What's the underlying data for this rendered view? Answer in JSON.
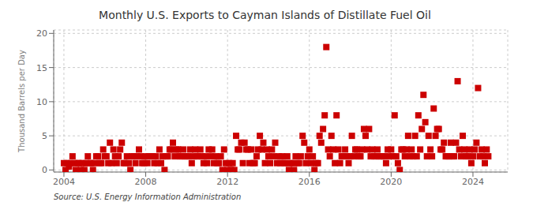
{
  "chart_data": {
    "type": "scatter",
    "title": "Monthly U.S. Exports to Cayman Islands of Distillate Fuel Oil",
    "ylabel": "Thousand Barrels per Day",
    "annotations": [
      "Source: U.S. Energy Information Administration"
    ],
    "color": "#CC0000",
    "marker": "square",
    "grid": true,
    "xlim": [
      2003.5,
      2025.7
    ],
    "ylim": [
      -0.3,
      20.5
    ],
    "xticks": [
      2004,
      2008,
      2012,
      2016,
      2020,
      2024
    ],
    "yticks": [
      0,
      5,
      10,
      15,
      20
    ],
    "x": [
      2004.0,
      2004.08,
      2004.17,
      2004.25,
      2004.33,
      2004.42,
      2004.5,
      2004.58,
      2004.67,
      2004.75,
      2004.83,
      2004.92,
      2005.0,
      2005.08,
      2005.17,
      2005.25,
      2005.33,
      2005.42,
      2005.5,
      2005.58,
      2005.67,
      2005.75,
      2005.83,
      2005.92,
      2006.0,
      2006.08,
      2006.17,
      2006.25,
      2006.33,
      2006.42,
      2006.5,
      2006.58,
      2006.67,
      2006.75,
      2006.83,
      2006.92,
      2007.0,
      2007.08,
      2007.17,
      2007.25,
      2007.33,
      2007.42,
      2007.5,
      2007.58,
      2007.67,
      2007.75,
      2007.83,
      2007.92,
      2008.0,
      2008.08,
      2008.17,
      2008.25,
      2008.33,
      2008.42,
      2008.5,
      2008.58,
      2008.67,
      2008.75,
      2008.83,
      2008.92,
      2009.0,
      2009.08,
      2009.17,
      2009.25,
      2009.33,
      2009.42,
      2009.5,
      2009.58,
      2009.67,
      2009.75,
      2009.83,
      2009.92,
      2010.0,
      2010.08,
      2010.17,
      2010.25,
      2010.33,
      2010.42,
      2010.5,
      2010.58,
      2010.67,
      2010.75,
      2010.83,
      2010.92,
      2011.0,
      2011.08,
      2011.17,
      2011.25,
      2011.33,
      2011.42,
      2011.5,
      2011.58,
      2011.67,
      2011.75,
      2011.83,
      2011.92,
      2012.0,
      2012.08,
      2012.17,
      2012.25,
      2012.33,
      2012.42,
      2012.5,
      2012.58,
      2012.67,
      2012.75,
      2012.83,
      2012.92,
      2013.0,
      2013.08,
      2013.17,
      2013.25,
      2013.33,
      2013.42,
      2013.5,
      2013.58,
      2013.67,
      2013.75,
      2013.83,
      2013.92,
      2014.0,
      2014.08,
      2014.17,
      2014.25,
      2014.33,
      2014.42,
      2014.5,
      2014.58,
      2014.67,
      2014.75,
      2014.83,
      2014.92,
      2015.0,
      2015.08,
      2015.17,
      2015.25,
      2015.33,
      2015.42,
      2015.5,
      2015.58,
      2015.67,
      2015.75,
      2015.83,
      2015.92,
      2016.0,
      2016.08,
      2016.17,
      2016.25,
      2016.33,
      2016.42,
      2016.5,
      2016.58,
      2016.67,
      2016.75,
      2016.83,
      2016.92,
      2017.0,
      2017.08,
      2017.17,
      2017.25,
      2017.33,
      2017.42,
      2017.5,
      2017.58,
      2017.67,
      2017.75,
      2017.83,
      2017.92,
      2018.0,
      2018.08,
      2018.17,
      2018.25,
      2018.33,
      2018.42,
      2018.5,
      2018.58,
      2018.67,
      2018.75,
      2018.83,
      2018.92,
      2019.0,
      2019.08,
      2019.17,
      2019.25,
      2019.33,
      2019.42,
      2019.5,
      2019.58,
      2019.67,
      2019.75,
      2019.83,
      2019.92,
      2020.0,
      2020.08,
      2020.17,
      2020.25,
      2020.33,
      2020.42,
      2020.5,
      2020.58,
      2020.67,
      2020.75,
      2020.83,
      2020.92,
      2021.0,
      2021.08,
      2021.17,
      2021.25,
      2021.33,
      2021.42,
      2021.5,
      2021.58,
      2021.67,
      2021.75,
      2021.83,
      2021.92,
      2022.0,
      2022.08,
      2022.17,
      2022.25,
      2022.33,
      2022.42,
      2022.5,
      2022.58,
      2022.67,
      2022.75,
      2022.83,
      2022.92,
      2023.0,
      2023.08,
      2023.17,
      2023.25,
      2023.33,
      2023.42,
      2023.5,
      2023.58,
      2023.67,
      2023.75,
      2023.83,
      2023.92,
      2024.0,
      2024.08,
      2024.17,
      2024.25,
      2024.33,
      2024.42,
      2024.5,
      2024.58,
      2024.67,
      2024.75
    ],
    "values": [
      1,
      0,
      1,
      0.5,
      1,
      2,
      1,
      0,
      1,
      1,
      0,
      1,
      0,
      1,
      2,
      1,
      1,
      0,
      1,
      2,
      2,
      1,
      1,
      3,
      2,
      2,
      1,
      4,
      1,
      3,
      2,
      1,
      2,
      3,
      4,
      1,
      1,
      2,
      1,
      0,
      2,
      2,
      1,
      2,
      3,
      2,
      1,
      1,
      2,
      1,
      2,
      2,
      2,
      1,
      2,
      1,
      3,
      1,
      2,
      0,
      2,
      2,
      3,
      3,
      4,
      2,
      3,
      3,
      2,
      2,
      3,
      2,
      2,
      2,
      3,
      1,
      2,
      3,
      2,
      2,
      3,
      2,
      1,
      2,
      1,
      3,
      2,
      3,
      1,
      2,
      1,
      1,
      2,
      0,
      3,
      1,
      0,
      1,
      0,
      1,
      0,
      5,
      3,
      3,
      4,
      1,
      4,
      3,
      3,
      1,
      3,
      1,
      1,
      2,
      3,
      5,
      3,
      4,
      1,
      3,
      2,
      1,
      3,
      2,
      4,
      1,
      2,
      1,
      2,
      1,
      1,
      2,
      0,
      1,
      1,
      0,
      2,
      1,
      1,
      2,
      5,
      4,
      1,
      2,
      3,
      1,
      2,
      0,
      1,
      1,
      5,
      4,
      6,
      8,
      18,
      3,
      2,
      5,
      3,
      1,
      8,
      3,
      1,
      2,
      2,
      3,
      2,
      1,
      2,
      5,
      2,
      3,
      3,
      2,
      2,
      3,
      6,
      5,
      3,
      6,
      2,
      3,
      2,
      2,
      3,
      2,
      2,
      2,
      2,
      1,
      3,
      2,
      3,
      2,
      8,
      2,
      1,
      0,
      3,
      3,
      2,
      3,
      5,
      2,
      3,
      2,
      5,
      2,
      8,
      3,
      6,
      11,
      7,
      2,
      5,
      3,
      2,
      9,
      5,
      6,
      6,
      3,
      3,
      4,
      2,
      2,
      2,
      4,
      2,
      2,
      4,
      13,
      3,
      2,
      5,
      3,
      2,
      2,
      3,
      1,
      2,
      3,
      4,
      12,
      2,
      3,
      2,
      1,
      3,
      2
    ]
  }
}
